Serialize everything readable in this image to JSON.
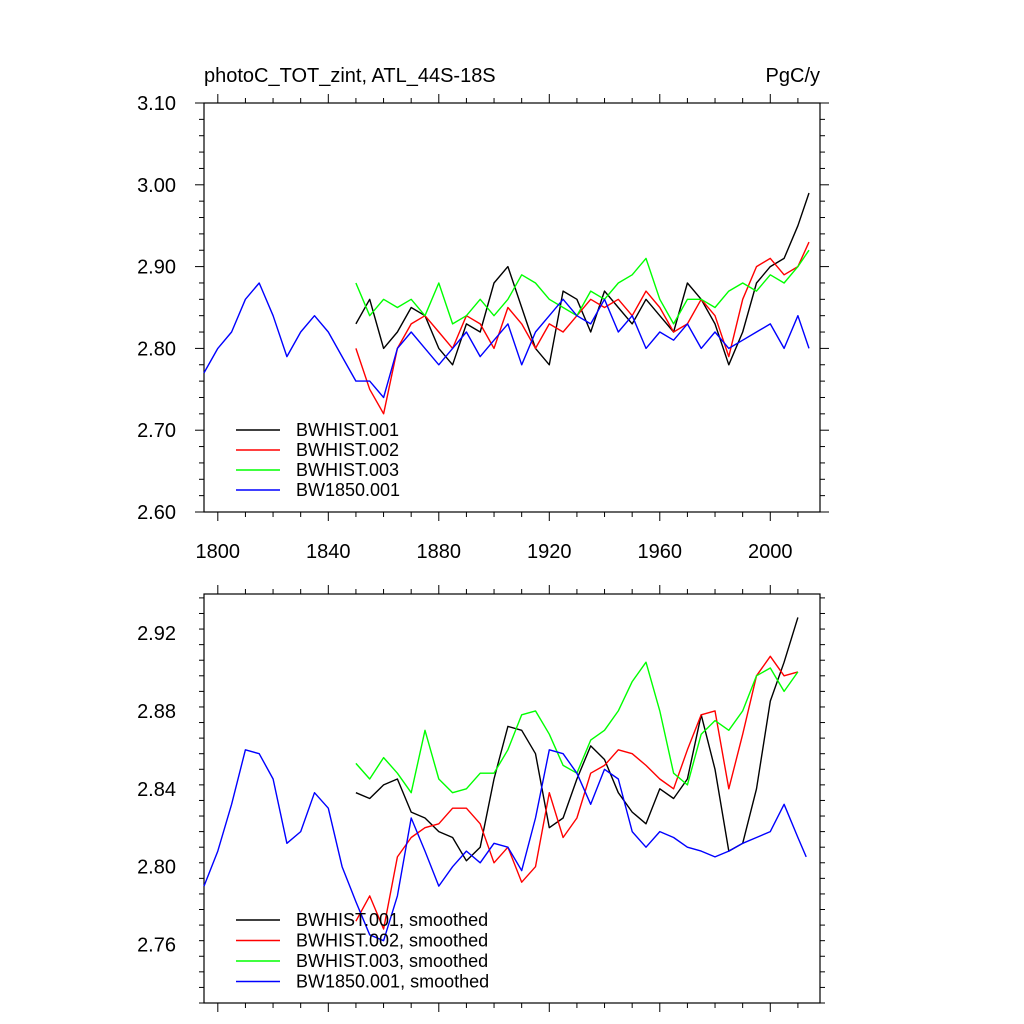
{
  "chart_data": [
    {
      "type": "line",
      "title_left": "photoC_TOT_zint, ATL_44S-18S",
      "title_right": "PgC/y",
      "xlabel": "",
      "ylabel": "",
      "xlim": [
        1795,
        2018
      ],
      "ylim": [
        2.6,
        3.1
      ],
      "xticks": [
        1800,
        1840,
        1880,
        1920,
        1960,
        2000
      ],
      "xtick_labels": [
        "1800",
        "1840",
        "1880",
        "1920",
        "1960",
        "2000"
      ],
      "yticks": [
        2.6,
        2.7,
        2.8,
        2.9,
        3.0,
        3.1
      ],
      "ytick_labels": [
        "2.60",
        "2.70",
        "2.80",
        "2.90",
        "3.00",
        "3.10"
      ],
      "legend_position": "bottom-left",
      "series": [
        {
          "name": "BWHIST.001",
          "color": "#000000",
          "x": [
            1850,
            1855,
            1860,
            1865,
            1870,
            1875,
            1880,
            1885,
            1890,
            1895,
            1900,
            1905,
            1910,
            1915,
            1920,
            1925,
            1930,
            1935,
            1940,
            1945,
            1950,
            1955,
            1960,
            1965,
            1970,
            1975,
            1980,
            1985,
            1990,
            1995,
            2000,
            2005,
            2010,
            2014
          ],
          "values": [
            2.83,
            2.86,
            2.8,
            2.82,
            2.85,
            2.84,
            2.8,
            2.78,
            2.83,
            2.82,
            2.88,
            2.9,
            2.85,
            2.8,
            2.78,
            2.87,
            2.86,
            2.82,
            2.87,
            2.85,
            2.83,
            2.86,
            2.84,
            2.82,
            2.88,
            2.86,
            2.83,
            2.78,
            2.82,
            2.88,
            2.9,
            2.91,
            2.95,
            2.99
          ]
        },
        {
          "name": "BWHIST.002",
          "color": "#ff0000",
          "x": [
            1850,
            1855,
            1860,
            1865,
            1870,
            1875,
            1880,
            1885,
            1890,
            1895,
            1900,
            1905,
            1910,
            1915,
            1920,
            1925,
            1930,
            1935,
            1940,
            1945,
            1950,
            1955,
            1960,
            1965,
            1970,
            1975,
            1980,
            1985,
            1990,
            1995,
            2000,
            2005,
            2010,
            2014
          ],
          "values": [
            2.8,
            2.75,
            2.72,
            2.8,
            2.83,
            2.84,
            2.82,
            2.8,
            2.84,
            2.83,
            2.8,
            2.85,
            2.83,
            2.8,
            2.83,
            2.82,
            2.84,
            2.86,
            2.85,
            2.86,
            2.84,
            2.87,
            2.85,
            2.82,
            2.83,
            2.86,
            2.84,
            2.79,
            2.86,
            2.9,
            2.91,
            2.89,
            2.9,
            2.93
          ]
        },
        {
          "name": "BWHIST.003",
          "color": "#00ff00",
          "x": [
            1850,
            1855,
            1860,
            1865,
            1870,
            1875,
            1880,
            1885,
            1890,
            1895,
            1900,
            1905,
            1910,
            1915,
            1920,
            1925,
            1930,
            1935,
            1940,
            1945,
            1950,
            1955,
            1960,
            1965,
            1970,
            1975,
            1980,
            1985,
            1990,
            1995,
            2000,
            2005,
            2010,
            2014
          ],
          "values": [
            2.88,
            2.84,
            2.86,
            2.85,
            2.86,
            2.84,
            2.88,
            2.83,
            2.84,
            2.86,
            2.84,
            2.86,
            2.89,
            2.88,
            2.86,
            2.85,
            2.84,
            2.87,
            2.86,
            2.88,
            2.89,
            2.91,
            2.86,
            2.83,
            2.86,
            2.86,
            2.85,
            2.87,
            2.88,
            2.87,
            2.89,
            2.88,
            2.9,
            2.92
          ]
        },
        {
          "name": "BW1850.001",
          "color": "#0000ff",
          "x": [
            1795,
            1800,
            1805,
            1810,
            1815,
            1820,
            1825,
            1830,
            1835,
            1840,
            1845,
            1850,
            1855,
            1860,
            1865,
            1870,
            1875,
            1880,
            1885,
            1890,
            1895,
            1900,
            1905,
            1910,
            1915,
            1920,
            1925,
            1930,
            1935,
            1940,
            1945,
            1950,
            1955,
            1960,
            1965,
            1970,
            1975,
            1980,
            1985,
            1990,
            1995,
            2000,
            2005,
            2010,
            2014
          ],
          "values": [
            2.77,
            2.8,
            2.82,
            2.86,
            2.88,
            2.84,
            2.79,
            2.82,
            2.84,
            2.82,
            2.79,
            2.76,
            2.76,
            2.74,
            2.8,
            2.82,
            2.8,
            2.78,
            2.8,
            2.82,
            2.79,
            2.81,
            2.83,
            2.78,
            2.82,
            2.84,
            2.86,
            2.84,
            2.83,
            2.86,
            2.82,
            2.84,
            2.8,
            2.82,
            2.81,
            2.83,
            2.8,
            2.82,
            2.8,
            2.81,
            2.82,
            2.83,
            2.8,
            2.84,
            2.8
          ]
        }
      ]
    },
    {
      "type": "line",
      "xlabel": "",
      "ylabel": "",
      "xlim": [
        1795,
        2018
      ],
      "ylim": [
        2.73,
        2.94
      ],
      "xticks": [
        1800,
        1840,
        1880,
        1920,
        1960,
        2000
      ],
      "yticks": [
        2.76,
        2.8,
        2.84,
        2.88,
        2.92
      ],
      "ytick_labels": [
        "2.76",
        "2.80",
        "2.84",
        "2.88",
        "2.92"
      ],
      "legend_position": "bottom-left",
      "series": [
        {
          "name": "BWHIST.001, smoothed",
          "color": "#000000",
          "x": [
            1850,
            1855,
            1860,
            1865,
            1870,
            1875,
            1880,
            1885,
            1890,
            1895,
            1900,
            1905,
            1910,
            1915,
            1920,
            1925,
            1930,
            1935,
            1940,
            1945,
            1950,
            1955,
            1960,
            1965,
            1970,
            1975,
            1980,
            1985,
            1990,
            1995,
            2000,
            2005,
            2010
          ],
          "values": [
            2.838,
            2.835,
            2.842,
            2.845,
            2.828,
            2.825,
            2.818,
            2.815,
            2.803,
            2.81,
            2.845,
            2.872,
            2.87,
            2.858,
            2.82,
            2.825,
            2.845,
            2.862,
            2.855,
            2.838,
            2.828,
            2.822,
            2.84,
            2.835,
            2.845,
            2.878,
            2.85,
            2.808,
            2.812,
            2.84,
            2.885,
            2.905,
            2.928
          ]
        },
        {
          "name": "BWHIST.002, smoothed",
          "color": "#ff0000",
          "x": [
            1850,
            1855,
            1860,
            1865,
            1870,
            1875,
            1880,
            1885,
            1890,
            1895,
            1900,
            1905,
            1910,
            1915,
            1920,
            1925,
            1930,
            1935,
            1940,
            1945,
            1950,
            1955,
            1960,
            1965,
            1970,
            1975,
            1980,
            1985,
            1990,
            1995,
            2000,
            2005,
            2010
          ],
          "values": [
            2.772,
            2.785,
            2.768,
            2.805,
            2.815,
            2.82,
            2.822,
            2.83,
            2.83,
            2.822,
            2.802,
            2.81,
            2.792,
            2.8,
            2.838,
            2.815,
            2.825,
            2.848,
            2.852,
            2.86,
            2.858,
            2.852,
            2.845,
            2.84,
            2.86,
            2.878,
            2.88,
            2.84,
            2.868,
            2.898,
            2.908,
            2.898,
            2.9
          ]
        },
        {
          "name": "BWHIST.003, smoothed",
          "color": "#00ff00",
          "x": [
            1850,
            1855,
            1860,
            1865,
            1870,
            1875,
            1880,
            1885,
            1890,
            1895,
            1900,
            1905,
            1910,
            1915,
            1920,
            1925,
            1930,
            1935,
            1940,
            1945,
            1950,
            1955,
            1960,
            1965,
            1970,
            1975,
            1980,
            1985,
            1990,
            1995,
            2000,
            2005,
            2010
          ],
          "values": [
            2.853,
            2.845,
            2.856,
            2.848,
            2.838,
            2.87,
            2.845,
            2.838,
            2.84,
            2.848,
            2.848,
            2.86,
            2.878,
            2.88,
            2.868,
            2.852,
            2.848,
            2.865,
            2.87,
            2.88,
            2.895,
            2.905,
            2.88,
            2.848,
            2.842,
            2.868,
            2.875,
            2.87,
            2.88,
            2.898,
            2.902,
            2.89,
            2.9
          ]
        },
        {
          "name": "BW1850.001, smoothed",
          "color": "#0000ff",
          "x": [
            1795,
            1800,
            1805,
            1810,
            1815,
            1820,
            1825,
            1830,
            1835,
            1840,
            1845,
            1850,
            1855,
            1860,
            1865,
            1870,
            1875,
            1880,
            1885,
            1890,
            1895,
            1900,
            1905,
            1910,
            1915,
            1920,
            1925,
            1930,
            1935,
            1940,
            1945,
            1950,
            1955,
            1960,
            1965,
            1970,
            1975,
            1980,
            1985,
            1990,
            1995,
            2000,
            2005,
            2010,
            2013
          ],
          "values": [
            2.79,
            2.808,
            2.832,
            2.86,
            2.858,
            2.845,
            2.812,
            2.818,
            2.838,
            2.83,
            2.8,
            2.782,
            2.765,
            2.762,
            2.785,
            2.825,
            2.808,
            2.79,
            2.8,
            2.808,
            2.802,
            2.812,
            2.81,
            2.798,
            2.825,
            2.86,
            2.858,
            2.848,
            2.832,
            2.85,
            2.845,
            2.818,
            2.81,
            2.818,
            2.815,
            2.81,
            2.808,
            2.805,
            2.808,
            2.812,
            2.815,
            2.818,
            2.832,
            2.815,
            2.805
          ]
        }
      ]
    }
  ]
}
